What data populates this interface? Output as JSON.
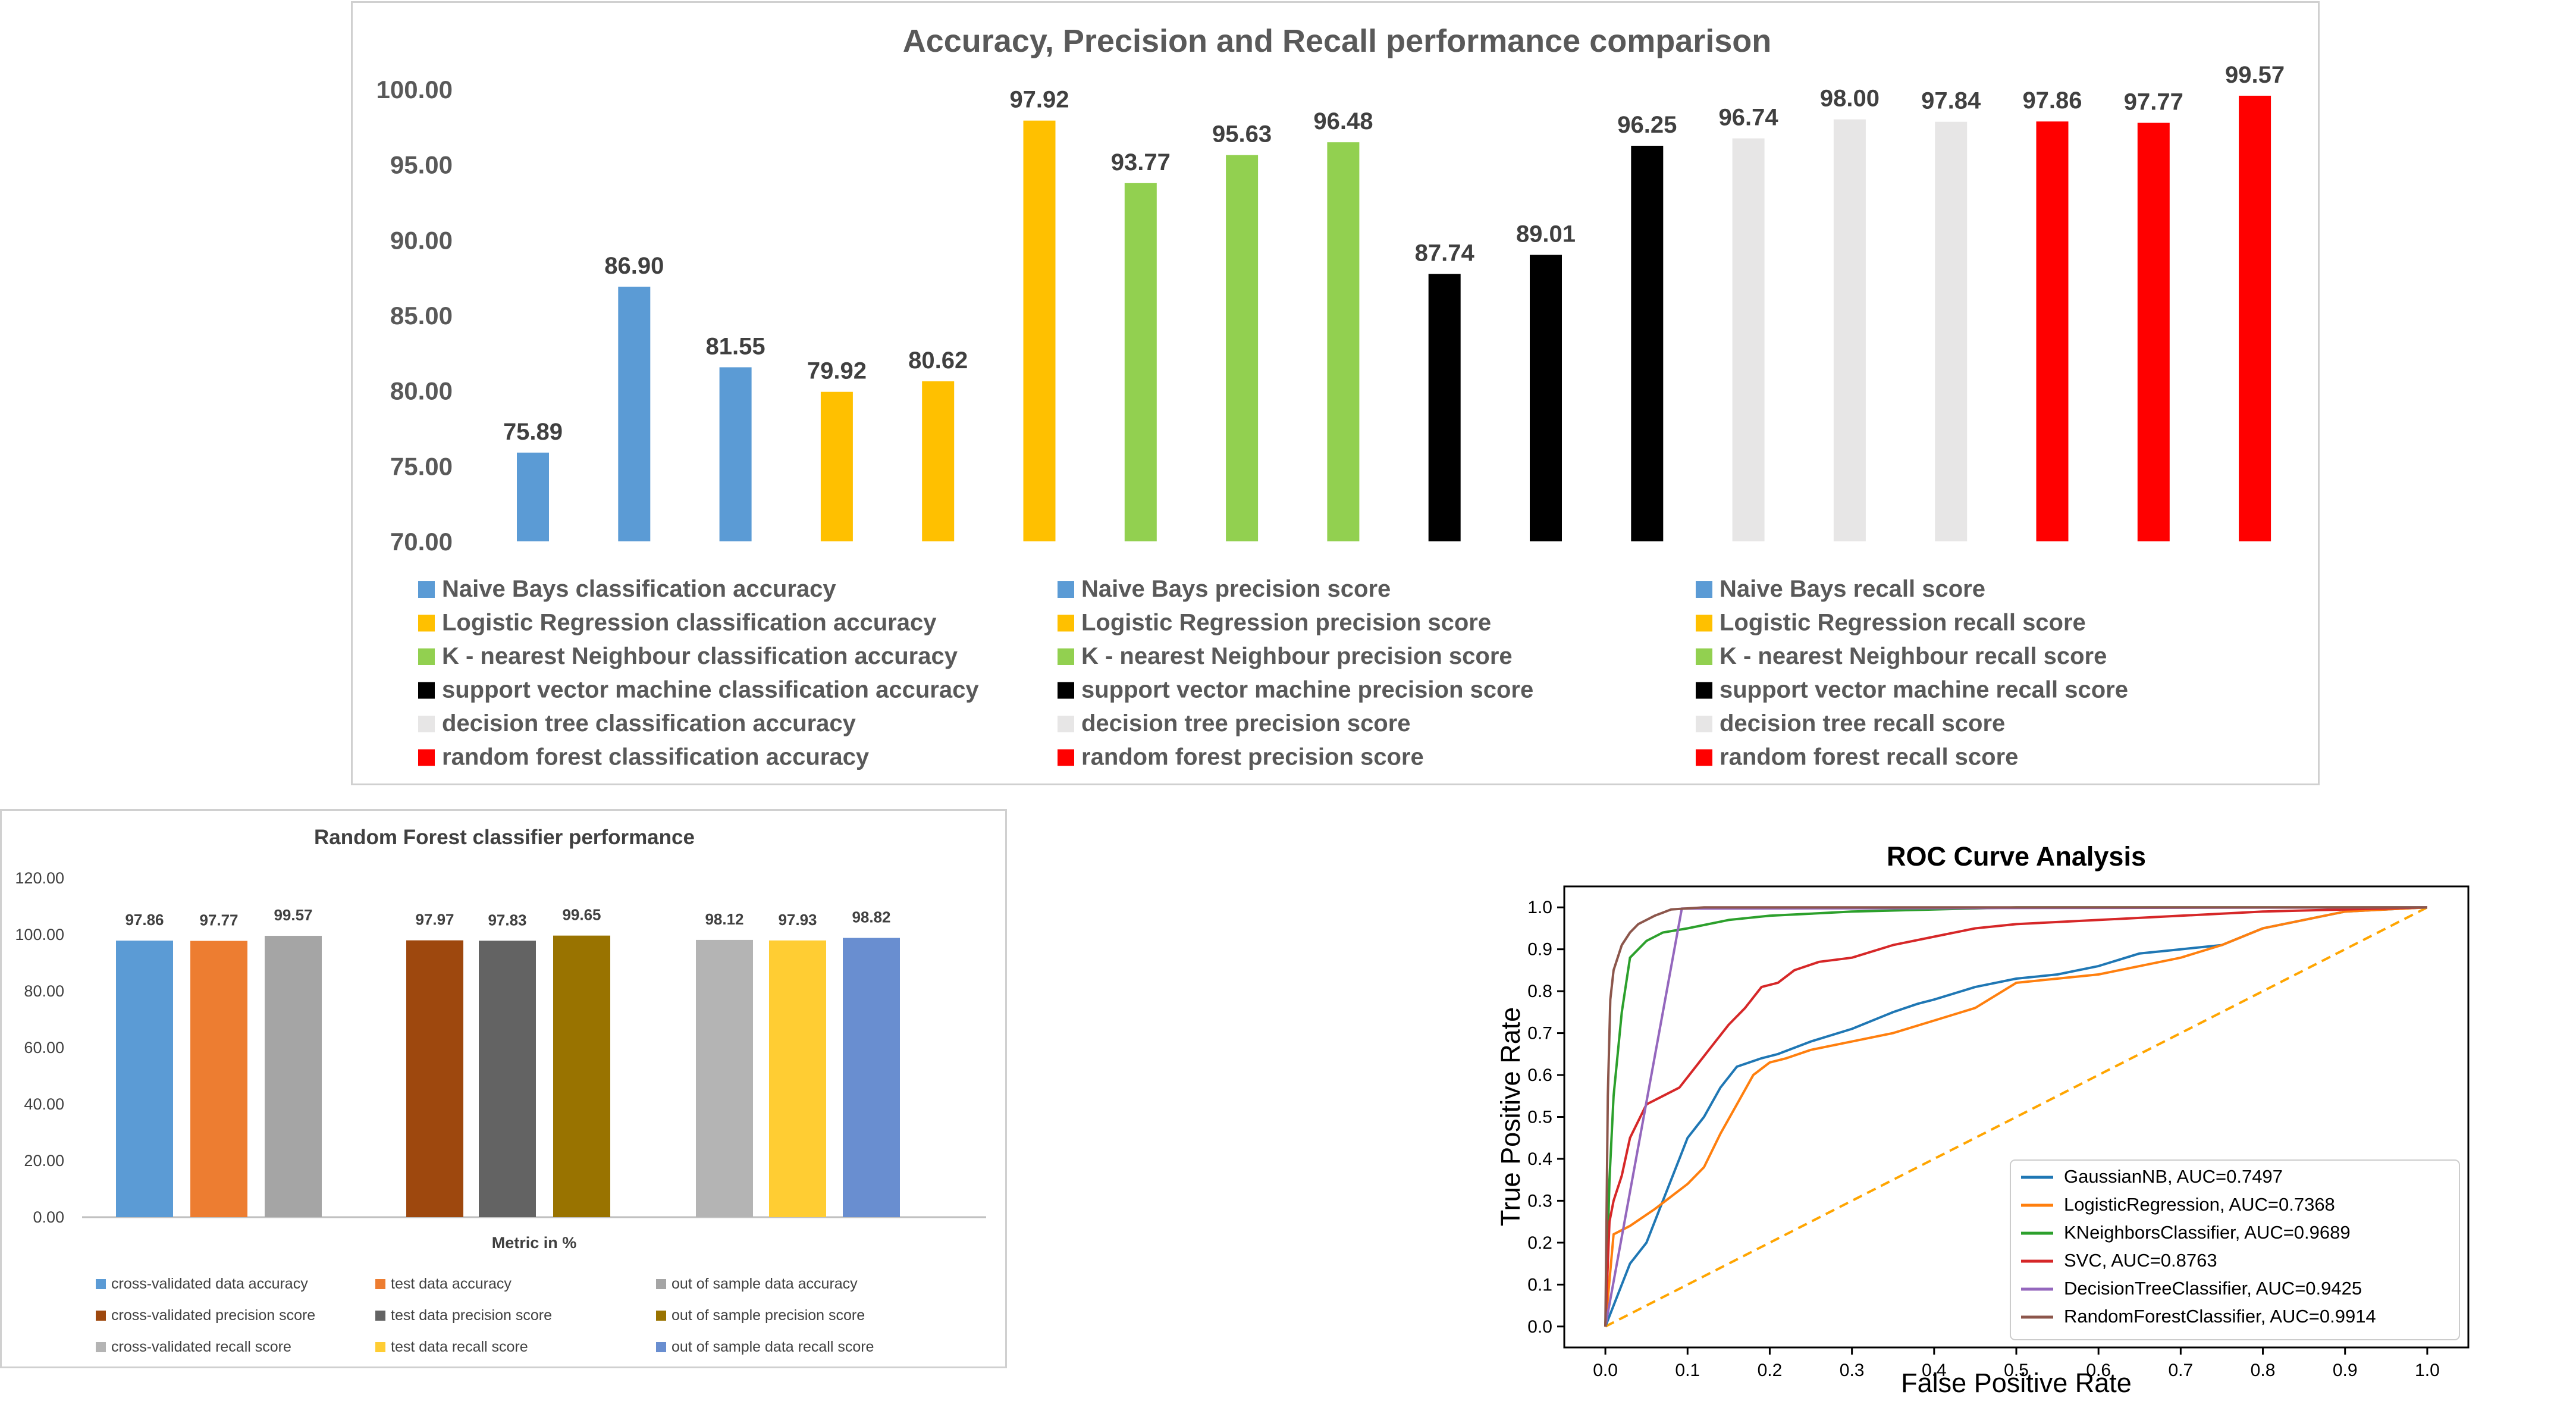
{
  "chart_data": [
    {
      "type": "bar",
      "title": "Accuracy, Precision and Recall performance comparison",
      "ylim": [
        70,
        100
      ],
      "yticks": [
        "70.00",
        "75.00",
        "80.00",
        "85.00",
        "90.00",
        "95.00",
        "100.00"
      ],
      "grid": false,
      "legend_position": "bottom",
      "values": [
        75.89,
        86.9,
        81.55,
        79.92,
        80.62,
        97.92,
        93.77,
        95.63,
        96.48,
        87.74,
        89.01,
        96.25,
        96.74,
        98.0,
        97.84,
        97.86,
        97.77,
        99.57
      ],
      "value_labels": [
        "75.89",
        "86.90",
        "81.55",
        "79.92",
        "80.62",
        "97.92",
        "93.77",
        "95.63",
        "96.48",
        "87.74",
        "89.01",
        "96.25",
        "96.74",
        "98.00",
        "97.84",
        "97.86",
        "97.77",
        "99.57"
      ],
      "bar_colors": [
        "#5B9BD5",
        "#5B9BD5",
        "#5B9BD5",
        "#FFC000",
        "#FFC000",
        "#FFC000",
        "#92D050",
        "#92D050",
        "#92D050",
        "#000000",
        "#000000",
        "#000000",
        "#E7E6E6",
        "#E7E6E6",
        "#E7E6E6",
        "#FF0000",
        "#FF0000",
        "#FF0000"
      ],
      "series": [
        {
          "name": "Naive Bays  classification accuracy",
          "color": "#5B9BD5"
        },
        {
          "name": "Naive Bays precision score",
          "color": "#5B9BD5"
        },
        {
          "name": "Naive Bays recall score",
          "color": "#5B9BD5"
        },
        {
          "name": "Logistic Regression classification accuracy",
          "color": "#FFC000"
        },
        {
          "name": "Logistic Regression precision score",
          "color": "#FFC000"
        },
        {
          "name": "Logistic Regression recall score",
          "color": "#FFC000"
        },
        {
          "name": "K - nearest  Neighbour classification accuracy",
          "color": "#92D050"
        },
        {
          "name": "K - nearest  Neighbour precision score",
          "color": "#92D050"
        },
        {
          "name": "K - nearest  Neighbour recall score",
          "color": "#92D050"
        },
        {
          "name": "support vector machine classification accuracy",
          "color": "#000000"
        },
        {
          "name": "support vector machine precision score",
          "color": "#000000"
        },
        {
          "name": "support vector machine recall score",
          "color": "#000000"
        },
        {
          "name": "decision tree classification accuracy",
          "color": "#E7E6E6"
        },
        {
          "name": "decision tree precision score",
          "color": "#E7E6E6"
        },
        {
          "name": "decision tree recall score",
          "color": "#E7E6E6"
        },
        {
          "name": "random forest classification accuracy",
          "color": "#FF0000"
        },
        {
          "name": "random forest precision score",
          "color": "#FF0000"
        },
        {
          "name": "random forest recall score",
          "color": "#FF0000"
        }
      ]
    },
    {
      "type": "bar",
      "title": "Random Forest classifier performance",
      "xlabel": "Metric  in %",
      "ylim": [
        0,
        120
      ],
      "yticks": [
        "0.00",
        "20.00",
        "40.00",
        "60.00",
        "80.00",
        "100.00",
        "120.00"
      ],
      "grid": false,
      "legend_position": "bottom",
      "groups": [
        {
          "values": [
            97.86,
            97.77,
            99.57
          ],
          "labels": [
            "97.86",
            "97.77",
            "99.57"
          ],
          "colors": [
            "#5B9BD5",
            "#ED7D31",
            "#A5A5A5"
          ]
        },
        {
          "values": [
            97.97,
            97.83,
            99.65
          ],
          "labels": [
            "97.97",
            "97.83",
            "99.65"
          ],
          "colors": [
            "#9E480E",
            "#636363",
            "#997300"
          ]
        },
        {
          "values": [
            98.12,
            97.93,
            98.82
          ],
          "labels": [
            "98.12",
            "97.93",
            "98.82"
          ],
          "colors": [
            "#B4B4B4",
            "#FFCD33",
            "#698ED0"
          ]
        }
      ],
      "series": [
        {
          "name": "cross-validated data accuracy",
          "color": "#5B9BD5"
        },
        {
          "name": "test data accuracy",
          "color": "#ED7D31"
        },
        {
          "name": "out of sample data accuracy",
          "color": "#A5A5A5"
        },
        {
          "name": "cross-validated precision score",
          "color": "#9E480E"
        },
        {
          "name": "test data precision score",
          "color": "#636363"
        },
        {
          "name": "out of sample precision score",
          "color": "#997300"
        },
        {
          "name": "cross-validated recall score",
          "color": "#B4B4B4"
        },
        {
          "name": "test data recall score",
          "color": "#FFCD33"
        },
        {
          "name": "out of sample data recall score",
          "color": "#698ED0"
        }
      ]
    },
    {
      "type": "line",
      "title": "ROC Curve Analysis",
      "xlabel": "False Positive Rate",
      "ylabel": "True Positive Rate",
      "xlim": [
        -0.05,
        1.05
      ],
      "ylim": [
        -0.05,
        1.05
      ],
      "xticks": [
        "0.0",
        "0.1",
        "0.2",
        "0.3",
        "0.4",
        "0.5",
        "0.6",
        "0.7",
        "0.8",
        "0.9",
        "1.0"
      ],
      "yticks": [
        "0.0",
        "0.1",
        "0.2",
        "0.3",
        "0.4",
        "0.5",
        "0.6",
        "0.7",
        "0.8",
        "0.9",
        "1.0"
      ],
      "grid": false,
      "legend_position": "bottom-right",
      "diagonal": {
        "color": "#FFA500",
        "x": [
          0,
          1
        ],
        "y": [
          0,
          1
        ]
      },
      "series": [
        {
          "name": "GaussianNB, AUC=0.7497",
          "color": "#1F77B4",
          "x": [
            0,
            0.01,
            0.02,
            0.03,
            0.05,
            0.07,
            0.09,
            0.1,
            0.12,
            0.14,
            0.16,
            0.19,
            0.21,
            0.25,
            0.3,
            0.35,
            0.38,
            0.4,
            0.45,
            0.5,
            0.55,
            0.6,
            0.65,
            0.7,
            0.75,
            0.8,
            0.9,
            1.0
          ],
          "y": [
            0,
            0.05,
            0.1,
            0.15,
            0.2,
            0.3,
            0.4,
            0.45,
            0.5,
            0.57,
            0.62,
            0.64,
            0.65,
            0.68,
            0.71,
            0.75,
            0.77,
            0.78,
            0.81,
            0.83,
            0.84,
            0.86,
            0.89,
            0.9,
            0.91,
            0.95,
            0.99,
            1.0
          ]
        },
        {
          "name": "LogisticRegression, AUC=0.7368",
          "color": "#FF7F0E",
          "x": [
            0,
            0.01,
            0.03,
            0.06,
            0.08,
            0.1,
            0.12,
            0.14,
            0.16,
            0.18,
            0.2,
            0.22,
            0.25,
            0.3,
            0.35,
            0.4,
            0.45,
            0.5,
            0.55,
            0.6,
            0.65,
            0.7,
            0.75,
            0.8,
            0.9,
            1.0
          ],
          "y": [
            0,
            0.22,
            0.24,
            0.28,
            0.31,
            0.34,
            0.38,
            0.46,
            0.53,
            0.6,
            0.63,
            0.64,
            0.66,
            0.68,
            0.7,
            0.73,
            0.76,
            0.82,
            0.83,
            0.84,
            0.86,
            0.88,
            0.91,
            0.95,
            0.99,
            1.0
          ]
        },
        {
          "name": "KNeighborsClassifier, AUC=0.9689",
          "color": "#2CA02C",
          "x": [
            0,
            0.005,
            0.01,
            0.02,
            0.03,
            0.05,
            0.07,
            0.1,
            0.15,
            0.2,
            0.3,
            0.4,
            0.5,
            0.6,
            0.8,
            1.0
          ],
          "y": [
            0,
            0.35,
            0.55,
            0.75,
            0.88,
            0.92,
            0.94,
            0.95,
            0.97,
            0.98,
            0.99,
            0.995,
            1.0,
            1.0,
            1.0,
            1.0
          ]
        },
        {
          "name": "SVC, AUC=0.8763",
          "color": "#D62728",
          "x": [
            0,
            0.005,
            0.01,
            0.02,
            0.03,
            0.05,
            0.07,
            0.09,
            0.11,
            0.13,
            0.15,
            0.17,
            0.19,
            0.21,
            0.23,
            0.26,
            0.3,
            0.35,
            0.4,
            0.45,
            0.5,
            0.6,
            0.7,
            0.8,
            0.9,
            1.0
          ],
          "y": [
            0,
            0.25,
            0.3,
            0.36,
            0.45,
            0.53,
            0.55,
            0.57,
            0.62,
            0.67,
            0.72,
            0.76,
            0.81,
            0.82,
            0.85,
            0.87,
            0.88,
            0.91,
            0.93,
            0.95,
            0.96,
            0.97,
            0.98,
            0.99,
            0.995,
            1.0
          ]
        },
        {
          "name": "DecisionTreeClassifier, AUC=0.9425",
          "color": "#9467BD",
          "x": [
            0,
            0.093,
            1.0
          ],
          "y": [
            0,
            0.997,
            1.0
          ]
        },
        {
          "name": "RandomForestClassifier, AUC=0.9914",
          "color": "#8C564B",
          "x": [
            0,
            0.003,
            0.006,
            0.01,
            0.015,
            0.02,
            0.03,
            0.04,
            0.06,
            0.08,
            0.12,
            0.2,
            0.4,
            0.7,
            1.0
          ],
          "y": [
            0,
            0.55,
            0.78,
            0.85,
            0.88,
            0.91,
            0.94,
            0.96,
            0.98,
            0.995,
            1.0,
            1.0,
            1.0,
            1.0,
            1.0
          ]
        }
      ]
    }
  ]
}
